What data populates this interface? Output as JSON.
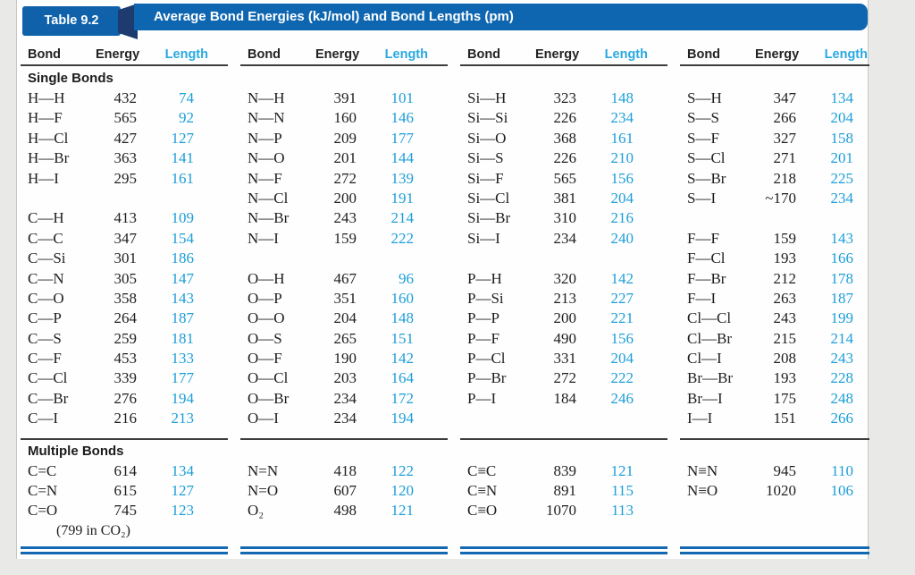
{
  "table": {
    "tab_label": "Table 9.2",
    "title": "Average Bond Energies (kJ/mol) and Bond Lengths (pm)",
    "column_headers": [
      "Bond",
      "Energy",
      "Length"
    ],
    "sections": {
      "single": "Single Bonds",
      "multiple": "Multiple Bonds"
    },
    "footnote": "(799 in CO₂)",
    "colors": {
      "banner_blue": "#0e66b0",
      "tab_blue": "#0f62aa",
      "notch_navy": "#1d3b6f",
      "length_cyan": "#1d9ed8",
      "header_cyan": "#29a9e1",
      "rule_blue": "#1368b1",
      "text_dark": "#1e1e1e"
    },
    "groups": [
      {
        "single": [
          [
            "H—H",
            "432",
            "74"
          ],
          [
            "H—F",
            "565",
            "92"
          ],
          [
            "H—Cl",
            "427",
            "127"
          ],
          [
            "H—Br",
            "363",
            "141"
          ],
          [
            "H—I",
            "295",
            "161"
          ],
          null,
          [
            "C—H",
            "413",
            "109"
          ],
          [
            "C—C",
            "347",
            "154"
          ],
          [
            "C—Si",
            "301",
            "186"
          ],
          [
            "C—N",
            "305",
            "147"
          ],
          [
            "C—O",
            "358",
            "143"
          ],
          [
            "C—P",
            "264",
            "187"
          ],
          [
            "C—S",
            "259",
            "181"
          ],
          [
            "C—F",
            "453",
            "133"
          ],
          [
            "C—Cl",
            "339",
            "177"
          ],
          [
            "C—Br",
            "276",
            "194"
          ],
          [
            "C—I",
            "216",
            "213"
          ]
        ],
        "multiple": [
          [
            "C=C",
            "614",
            "134"
          ],
          [
            "C=N",
            "615",
            "127"
          ],
          [
            "C=O",
            "745",
            "123"
          ]
        ]
      },
      {
        "single": [
          [
            "N—H",
            "391",
            "101"
          ],
          [
            "N—N",
            "160",
            "146"
          ],
          [
            "N—P",
            "209",
            "177"
          ],
          [
            "N—O",
            "201",
            "144"
          ],
          [
            "N—F",
            "272",
            "139"
          ],
          [
            "N—Cl",
            "200",
            "191"
          ],
          [
            "N—Br",
            "243",
            "214"
          ],
          [
            "N—I",
            "159",
            "222"
          ],
          null,
          [
            "O—H",
            "467",
            "96"
          ],
          [
            "O—P",
            "351",
            "160"
          ],
          [
            "O—O",
            "204",
            "148"
          ],
          [
            "O—S",
            "265",
            "151"
          ],
          [
            "O—F",
            "190",
            "142"
          ],
          [
            "O—Cl",
            "203",
            "164"
          ],
          [
            "O—Br",
            "234",
            "172"
          ],
          [
            "O—I",
            "234",
            "194"
          ]
        ],
        "multiple": [
          [
            "N=N",
            "418",
            "122"
          ],
          [
            "N=O",
            "607",
            "120"
          ],
          [
            "O₂",
            "498",
            "121"
          ]
        ]
      },
      {
        "single": [
          [
            "Si—H",
            "323",
            "148"
          ],
          [
            "Si—Si",
            "226",
            "234"
          ],
          [
            "Si—O",
            "368",
            "161"
          ],
          [
            "Si—S",
            "226",
            "210"
          ],
          [
            "Si—F",
            "565",
            "156"
          ],
          [
            "Si—Cl",
            "381",
            "204"
          ],
          [
            "Si—Br",
            "310",
            "216"
          ],
          [
            "Si—I",
            "234",
            "240"
          ],
          null,
          [
            "P—H",
            "320",
            "142"
          ],
          [
            "P—Si",
            "213",
            "227"
          ],
          [
            "P—P",
            "200",
            "221"
          ],
          [
            "P—F",
            "490",
            "156"
          ],
          [
            "P—Cl",
            "331",
            "204"
          ],
          [
            "P—Br",
            "272",
            "222"
          ],
          [
            "P—I",
            "184",
            "246"
          ],
          null
        ],
        "multiple": [
          [
            "C≡C",
            "839",
            "121"
          ],
          [
            "C≡N",
            "891",
            "115"
          ],
          [
            "C≡O",
            "1070",
            "113"
          ]
        ]
      },
      {
        "single": [
          [
            "S—H",
            "347",
            "134"
          ],
          [
            "S—S",
            "266",
            "204"
          ],
          [
            "S—F",
            "327",
            "158"
          ],
          [
            "S—Cl",
            "271",
            "201"
          ],
          [
            "S—Br",
            "218",
            "225"
          ],
          [
            "S—I",
            "~170",
            "234"
          ],
          null,
          [
            "F—F",
            "159",
            "143"
          ],
          [
            "F—Cl",
            "193",
            "166"
          ],
          [
            "F—Br",
            "212",
            "178"
          ],
          [
            "F—I",
            "263",
            "187"
          ],
          [
            "Cl—Cl",
            "243",
            "199"
          ],
          [
            "Cl—Br",
            "215",
            "214"
          ],
          [
            "Cl—I",
            "208",
            "243"
          ],
          [
            "Br—Br",
            "193",
            "228"
          ],
          [
            "Br—I",
            "175",
            "248"
          ],
          [
            "I—I",
            "151",
            "266"
          ]
        ],
        "multiple": [
          [
            "N≡N",
            "945",
            "110"
          ],
          [
            "N≡O",
            "1020",
            "106"
          ],
          null
        ]
      }
    ]
  }
}
